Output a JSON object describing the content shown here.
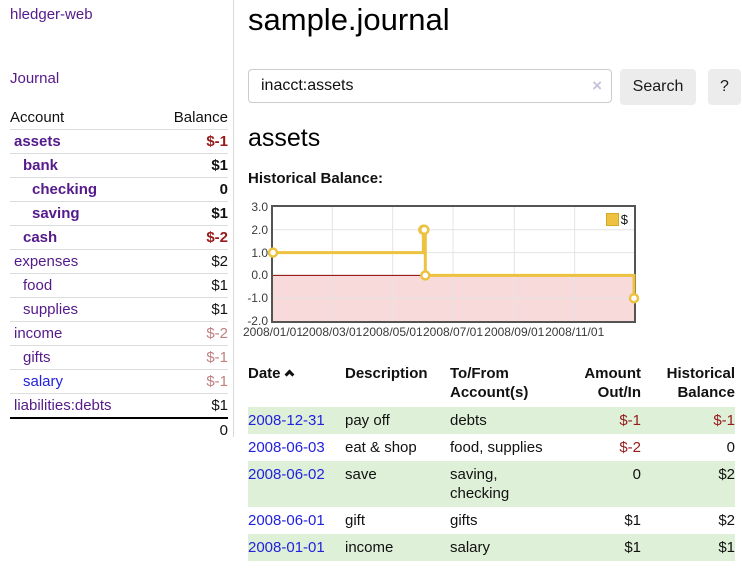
{
  "app": {
    "title": "hledger-web"
  },
  "sidebar": {
    "nav": {
      "journal_label": "Journal"
    },
    "table_headers": {
      "account": "Account",
      "balance": "Balance"
    },
    "accounts": [
      {
        "label": "assets",
        "indent": 0,
        "bold": true,
        "link_color": "purple",
        "balance": "$-1",
        "balance_color": "negative",
        "balance_bold": true
      },
      {
        "label": "bank",
        "indent": 1,
        "bold": true,
        "link_color": "purple",
        "balance": "$1",
        "balance_color": "normal",
        "balance_bold": true
      },
      {
        "label": "checking",
        "indent": 2,
        "bold": true,
        "link_color": "purple",
        "balance": "0",
        "balance_color": "normal",
        "balance_bold": true
      },
      {
        "label": "saving",
        "indent": 2,
        "bold": true,
        "link_color": "purple",
        "balance": "$1",
        "balance_color": "normal",
        "balance_bold": true
      },
      {
        "label": "cash",
        "indent": 1,
        "bold": true,
        "link_color": "purple",
        "balance": "$-2",
        "balance_color": "negative",
        "balance_bold": true
      },
      {
        "label": "expenses",
        "indent": 0,
        "bold": false,
        "link_color": "purple",
        "balance": "$2",
        "balance_color": "normal",
        "balance_bold": false
      },
      {
        "label": "food",
        "indent": 1,
        "bold": false,
        "link_color": "purple",
        "balance": "$1",
        "balance_color": "normal",
        "balance_bold": false
      },
      {
        "label": "supplies",
        "indent": 1,
        "bold": false,
        "link_color": "purple",
        "balance": "$1",
        "balance_color": "normal",
        "balance_bold": false
      },
      {
        "label": "income",
        "indent": 0,
        "bold": false,
        "link_color": "purple",
        "balance": "$-2",
        "balance_color": "negative-muted",
        "balance_bold": false
      },
      {
        "label": "gifts",
        "indent": 1,
        "bold": false,
        "link_color": "purple",
        "balance": "$-1",
        "balance_color": "negative-muted",
        "balance_bold": false
      },
      {
        "label": "salary",
        "indent": 1,
        "bold": false,
        "link_color": "blue",
        "balance": "$-1",
        "balance_color": "negative-muted",
        "balance_bold": false
      },
      {
        "label": "liabilities:debts",
        "indent": 0,
        "bold": false,
        "link_color": "purple",
        "balance": "$1",
        "balance_color": "normal",
        "balance_bold": false
      }
    ],
    "total_balance": "0"
  },
  "main": {
    "page_title": "sample.journal",
    "search": {
      "value": "inacct:assets",
      "clear_icon": "×",
      "search_button_label": "Search",
      "help_button_label": "?"
    },
    "section_heading": "assets",
    "chart_title": "Historical Balance:"
  },
  "chart_data": {
    "type": "line",
    "style": "step",
    "title": "Historical Balance:",
    "series": [
      {
        "name": "$",
        "color": "#edc240",
        "points": [
          [
            "2008-01-01",
            1
          ],
          [
            "2008-06-01",
            2
          ],
          [
            "2008-06-02",
            2
          ],
          [
            "2008-06-03",
            0
          ],
          [
            "2008-12-31",
            -1
          ]
        ]
      }
    ],
    "x_range": [
      "2008-01-01",
      "2008-12-31"
    ],
    "x_tick_labels": [
      "2008/01/01",
      "2008/03/01",
      "2008/05/01",
      "2008/07/01",
      "2008/09/01",
      "2008/11/01"
    ],
    "y_ticks": [
      3.0,
      2.0,
      1.0,
      0.0,
      -1.0,
      -2.0
    ],
    "ylim": [
      -2,
      3
    ],
    "grid": true,
    "legend": {
      "label": "$",
      "position": "top-right",
      "swatch_color": "#edc240"
    },
    "zero_line_color": "#8b0000",
    "negative_region_color": "#f9dada"
  },
  "register": {
    "headers": {
      "date": "Date",
      "description": "Description",
      "accounts": "To/From Account(s)",
      "amount": "Amount Out/In",
      "balance": "Historical Balance"
    },
    "rows": [
      {
        "date": "2008-12-31",
        "description": "pay off",
        "accounts": "debts",
        "amount": "$-1",
        "amount_negative": true,
        "balance": "$-1",
        "balance_negative": true
      },
      {
        "date": "2008-06-03",
        "description": "eat & shop",
        "accounts": "food, supplies",
        "amount": "$-2",
        "amount_negative": true,
        "balance": "0",
        "balance_negative": false
      },
      {
        "date": "2008-06-02",
        "description": "save",
        "accounts": "saving, checking",
        "amount": "0",
        "amount_negative": false,
        "balance": "$2",
        "balance_negative": false
      },
      {
        "date": "2008-06-01",
        "description": "gift",
        "accounts": "gifts",
        "amount": "$1",
        "amount_negative": false,
        "balance": "$2",
        "balance_negative": false
      },
      {
        "date": "2008-01-01",
        "description": "income",
        "accounts": "salary",
        "amount": "$1",
        "amount_negative": false,
        "balance": "$1",
        "balance_negative": false
      }
    ]
  },
  "colors": {
    "link_purple": "#551a8b",
    "link_blue": "#2222dd",
    "negative": "#971a1a",
    "negative_muted": "#c08080",
    "row_stripe_green": "#dff0d8",
    "chart_line": "#edc240",
    "chart_negative_fill": "#f9dada",
    "chart_zero_line": "#8b0000",
    "button_bg": "#ececec"
  }
}
